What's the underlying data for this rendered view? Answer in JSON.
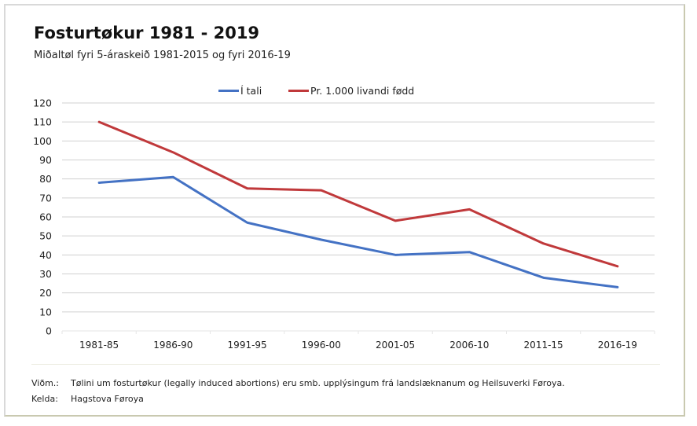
{
  "chart_data": {
    "type": "line",
    "title": "Fosturtøkur 1981 - 2019",
    "subtitle": "Miðaltøl fyri 5-áraskeið 1981-2015 og fyri 2016-19",
    "xlabel": "",
    "ylabel": "",
    "categories": [
      "1981-85",
      "1986-90",
      "1991-95",
      "1996-00",
      "2001-05",
      "2006-10",
      "2011-15",
      "2016-19"
    ],
    "series": [
      {
        "name": "Í tali",
        "color": "#4472c4",
        "values": [
          78,
          81,
          57,
          48,
          40,
          41.5,
          28,
          23
        ]
      },
      {
        "name": "Pr. 1.000 livandi fødd",
        "color": "#c0393b",
        "values": [
          110,
          94,
          75,
          74,
          58,
          64,
          46,
          34
        ]
      }
    ],
    "ylim": [
      0,
      120
    ],
    "yticks": [
      0,
      10,
      20,
      30,
      40,
      50,
      60,
      70,
      80,
      90,
      100,
      110,
      120
    ],
    "grid": true,
    "legend_position": "top-center"
  },
  "footer": {
    "note_label": "Viðm.:",
    "note_text": "Tølini um fosturtøkur (legally induced abortions) eru smb. upplýsingum frá landslæknanum og Heilsuverki Føroya.",
    "source_label": "Kelda:",
    "source_text": "Hagstova Føroya"
  }
}
